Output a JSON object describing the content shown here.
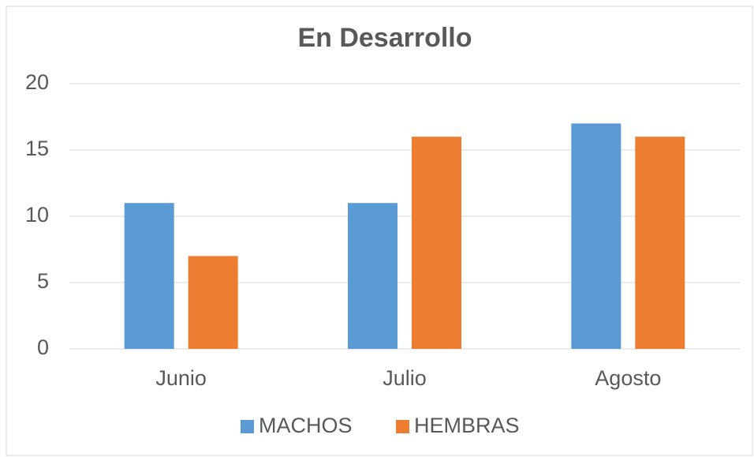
{
  "chart_data": {
    "type": "bar",
    "title": "En Desarrollo",
    "categories": [
      "Junio",
      "Julio",
      "Agosto"
    ],
    "series": [
      {
        "name": "MACHOS",
        "color": "#5b9bd5",
        "values": [
          11,
          11,
          17
        ]
      },
      {
        "name": "HEMBRAS",
        "color": "#ed7d31",
        "values": [
          7,
          16,
          16
        ]
      }
    ],
    "ylim": [
      0,
      20
    ],
    "yticks": [
      0,
      5,
      10,
      15,
      20
    ],
    "grid": true,
    "legend": "bottom"
  }
}
